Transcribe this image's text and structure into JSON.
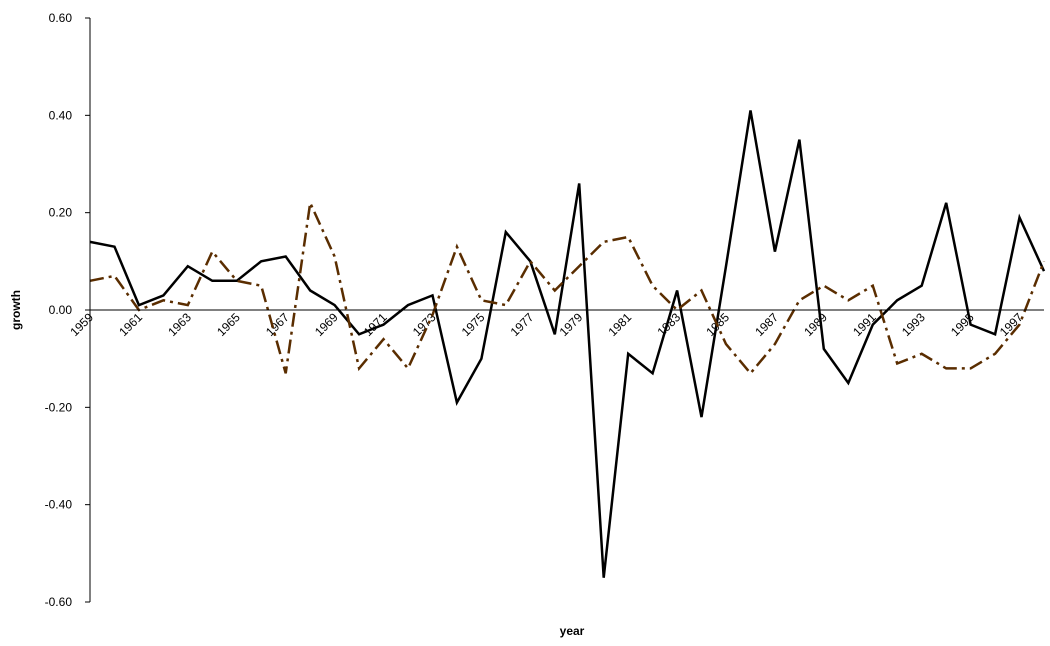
{
  "chart_data": {
    "type": "line",
    "xlabel": "year",
    "ylabel": "growth",
    "ylim": [
      -0.6,
      0.6
    ],
    "y_ticks": [
      "0.60",
      "0.40",
      "0.20",
      "0.00",
      "-0.20",
      "-0.40",
      "-0.60"
    ],
    "x_tick_labels": [
      "1959",
      "1961",
      "1963",
      "1965",
      "1967",
      "1969",
      "1971",
      "1973",
      "1975",
      "1977",
      "1979",
      "1981",
      "1983",
      "1985",
      "1987",
      "1989",
      "1991",
      "1993",
      "1995",
      "1997"
    ],
    "x": [
      1959,
      1960,
      1961,
      1962,
      1963,
      1964,
      1965,
      1966,
      1967,
      1968,
      1969,
      1970,
      1971,
      1972,
      1973,
      1974,
      1975,
      1976,
      1977,
      1978,
      1979,
      1980,
      1981,
      1982,
      1983,
      1984,
      1985,
      1986,
      1987,
      1988,
      1989,
      1990,
      1991,
      1992,
      1993,
      1994,
      1995,
      1996,
      1997,
      1998
    ],
    "series": [
      {
        "color": "#000000",
        "style": "solid",
        "values": [
          0.14,
          0.13,
          0.01,
          0.03,
          0.09,
          0.06,
          0.06,
          0.1,
          0.11,
          0.04,
          0.01,
          -0.05,
          -0.03,
          0.01,
          0.03,
          -0.19,
          -0.1,
          0.16,
          0.1,
          -0.05,
          0.26,
          -0.55,
          -0.09,
          -0.13,
          0.04,
          -0.22,
          0.09,
          0.41,
          0.12,
          0.35,
          -0.08,
          -0.15,
          -0.03,
          0.02,
          0.05,
          0.22,
          -0.03,
          -0.05,
          0.19,
          0.08
        ]
      },
      {
        "color": "#5a2d00",
        "style": "dash-dot",
        "values": [
          0.06,
          0.07,
          0.0,
          0.02,
          0.01,
          0.12,
          0.06,
          0.05,
          -0.13,
          0.22,
          0.11,
          -0.12,
          -0.06,
          -0.12,
          -0.01,
          0.13,
          0.02,
          0.01,
          0.1,
          0.04,
          0.09,
          0.14,
          0.15,
          0.05,
          0.0,
          0.04,
          -0.07,
          -0.13,
          -0.07,
          0.02,
          0.05,
          0.02,
          0.05,
          -0.11,
          -0.09,
          -0.12,
          -0.12,
          -0.09,
          -0.03,
          0.1
        ]
      }
    ]
  }
}
